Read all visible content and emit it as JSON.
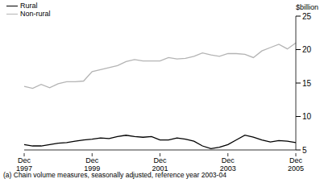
{
  "chart_data": {
    "type": "line",
    "y_label": "$billion",
    "footnote": "(a) Chain volume measures, seasonally adjusted, reference year 2003-04",
    "categories": [
      "Dec 1997",
      null,
      null,
      null,
      null,
      null,
      null,
      null,
      "Dec 1999",
      null,
      null,
      null,
      null,
      null,
      null,
      null,
      "Dec 2001",
      null,
      null,
      null,
      null,
      null,
      null,
      null,
      "Dec 2003",
      null,
      null,
      null,
      null,
      null,
      null,
      null,
      "Dec 2005"
    ],
    "series": [
      {
        "name": "Rural",
        "color": "#000000",
        "values": [
          5.8,
          5.6,
          5.6,
          5.8,
          6.0,
          6.1,
          6.3,
          6.5,
          6.6,
          6.8,
          6.7,
          7.0,
          7.2,
          7.0,
          6.9,
          7.0,
          6.5,
          6.5,
          6.8,
          6.6,
          6.3,
          5.6,
          5.2,
          5.4,
          5.8,
          6.5,
          7.2,
          6.9,
          6.5,
          6.2,
          6.4,
          6.3,
          6.1
        ]
      },
      {
        "name": "Non-rural",
        "color": "#b4b4b4",
        "values": [
          14.5,
          14.2,
          14.8,
          14.3,
          14.9,
          15.2,
          15.2,
          15.3,
          16.7,
          17.0,
          17.3,
          17.6,
          18.2,
          18.5,
          18.3,
          18.3,
          18.3,
          18.8,
          18.6,
          18.7,
          19.0,
          19.5,
          19.2,
          19.0,
          19.4,
          19.4,
          19.3,
          18.8,
          19.8,
          20.3,
          20.8,
          20.1,
          21.0
        ]
      }
    ],
    "ylim": [
      5,
      25
    ],
    "yticks": [
      5,
      10,
      15,
      20,
      25
    ],
    "grid": false,
    "legend": "upper left"
  }
}
